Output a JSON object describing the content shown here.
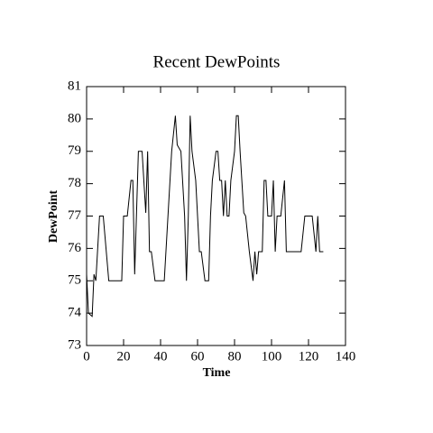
{
  "chart_data": {
    "type": "line",
    "title": "Recent DewPoints",
    "x_label": "Time",
    "y_label": "DewPoint",
    "xlim": [
      0,
      140
    ],
    "ylim": [
      73,
      81
    ],
    "xticks": [
      0,
      20,
      40,
      60,
      80,
      100,
      120,
      140
    ],
    "yticks": [
      73,
      74,
      75,
      76,
      77,
      78,
      79,
      80,
      81
    ],
    "grid": false,
    "series": [
      {
        "name": "DewPoint",
        "color": "#000000",
        "x": [
          0,
          1,
          3,
          4,
          5,
          7,
          9,
          12,
          19,
          20,
          22,
          24,
          25,
          26,
          28,
          30,
          32,
          33,
          34,
          35,
          37,
          42,
          44,
          46,
          48,
          49,
          51,
          53,
          54,
          55,
          56,
          57,
          59,
          60,
          61,
          62,
          64,
          66,
          67,
          68,
          70,
          71,
          72,
          73,
          74,
          75,
          76,
          77,
          78,
          80,
          81,
          82,
          83,
          85,
          86,
          88,
          90,
          91,
          92,
          93,
          95,
          96,
          97,
          98,
          100,
          101,
          102,
          103,
          105,
          107,
          108,
          116,
          118,
          122,
          124,
          125,
          126,
          128
        ],
        "values": [
          75.2,
          74,
          73.9,
          75.2,
          75,
          77,
          77,
          75,
          75,
          77,
          77,
          78.1,
          78.1,
          75.2,
          79,
          79,
          77.1,
          79,
          75.9,
          75.9,
          75,
          75,
          77,
          79,
          80.1,
          79.2,
          79,
          77,
          75,
          77,
          80.1,
          79,
          78.1,
          77,
          75.9,
          75.9,
          75,
          75,
          77,
          78.1,
          79,
          79,
          78.1,
          78.1,
          77,
          78.1,
          77,
          77,
          78.1,
          79,
          80.1,
          80.1,
          79,
          77.1,
          77,
          75.9,
          75,
          75.9,
          75.2,
          75.9,
          75.9,
          78.1,
          78.1,
          77,
          77,
          78.1,
          75.9,
          77,
          77,
          78.1,
          75.9,
          75.9,
          77,
          77,
          75.9,
          77,
          75.9,
          75.9
        ]
      }
    ]
  }
}
